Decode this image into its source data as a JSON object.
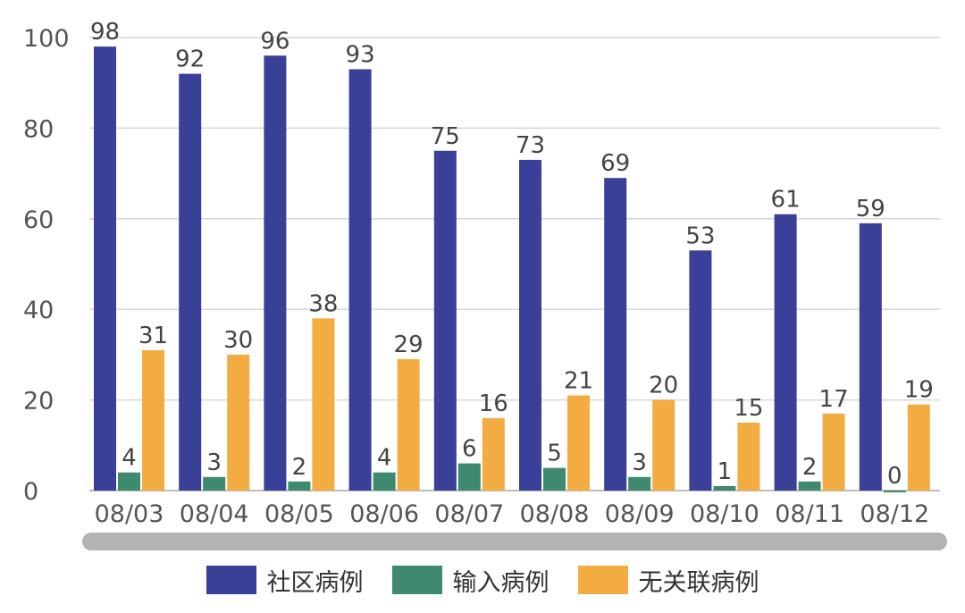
{
  "chart_data": {
    "type": "bar",
    "title": "",
    "xlabel": "",
    "ylabel": "",
    "ylim": [
      0,
      100
    ],
    "yticks": [
      0,
      20,
      40,
      60,
      80,
      100
    ],
    "grid": true,
    "legend_position": "bottom",
    "categories": [
      "08/03",
      "08/04",
      "08/05",
      "08/06",
      "08/07",
      "08/08",
      "08/09",
      "08/10",
      "08/11",
      "08/12"
    ],
    "series": [
      {
        "name": "社区病例",
        "color": "#3a3f98",
        "values": [
          98,
          92,
          96,
          93,
          75,
          73,
          69,
          53,
          61,
          59
        ]
      },
      {
        "name": "输入病例",
        "color": "#3d8a6e",
        "values": [
          4,
          3,
          2,
          4,
          6,
          5,
          3,
          1,
          2,
          0
        ]
      },
      {
        "name": "无关联病例",
        "color": "#f2ac41",
        "values": [
          31,
          30,
          38,
          29,
          16,
          21,
          20,
          15,
          17,
          19
        ]
      }
    ]
  }
}
